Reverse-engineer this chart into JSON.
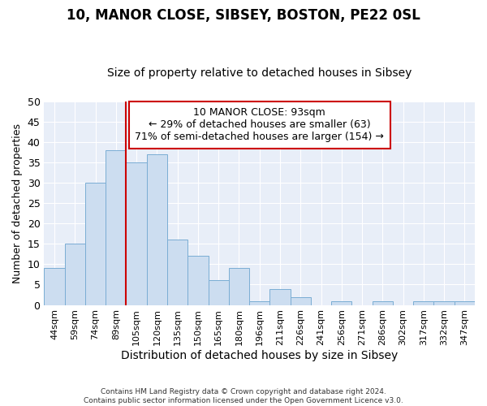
{
  "title": "10, MANOR CLOSE, SIBSEY, BOSTON, PE22 0SL",
  "subtitle": "Size of property relative to detached houses in Sibsey",
  "xlabel": "Distribution of detached houses by size in Sibsey",
  "ylabel": "Number of detached properties",
  "bar_labels": [
    "44sqm",
    "59sqm",
    "74sqm",
    "89sqm",
    "105sqm",
    "120sqm",
    "135sqm",
    "150sqm",
    "165sqm",
    "180sqm",
    "196sqm",
    "211sqm",
    "226sqm",
    "241sqm",
    "256sqm",
    "271sqm",
    "286sqm",
    "302sqm",
    "317sqm",
    "332sqm",
    "347sqm"
  ],
  "bar_values": [
    9,
    15,
    30,
    38,
    35,
    37,
    16,
    12,
    6,
    9,
    1,
    4,
    2,
    0,
    1,
    0,
    1,
    0,
    1,
    1,
    1
  ],
  "ylim": [
    0,
    50
  ],
  "yticks": [
    0,
    5,
    10,
    15,
    20,
    25,
    30,
    35,
    40,
    45,
    50
  ],
  "bar_color": "#ccddf0",
  "bar_edge_color": "#7aadd4",
  "vline_x": 3.5,
  "vline_color": "#cc0000",
  "annotation_line1": "10 MANOR CLOSE: 93sqm",
  "annotation_line2": "← 29% of detached houses are smaller (63)",
  "annotation_line3": "71% of semi-detached houses are larger (154) →",
  "annotation_box_color": "#cc0000",
  "footnote": "Contains HM Land Registry data © Crown copyright and database right 2024.\nContains public sector information licensed under the Open Government Licence v3.0.",
  "bg_color": "#e8eef8",
  "grid_color": "#ffffff",
  "title_fontsize": 12,
  "subtitle_fontsize": 10,
  "tick_fontsize": 8,
  "ylabel_fontsize": 9,
  "xlabel_fontsize": 10,
  "annot_fontsize": 9
}
